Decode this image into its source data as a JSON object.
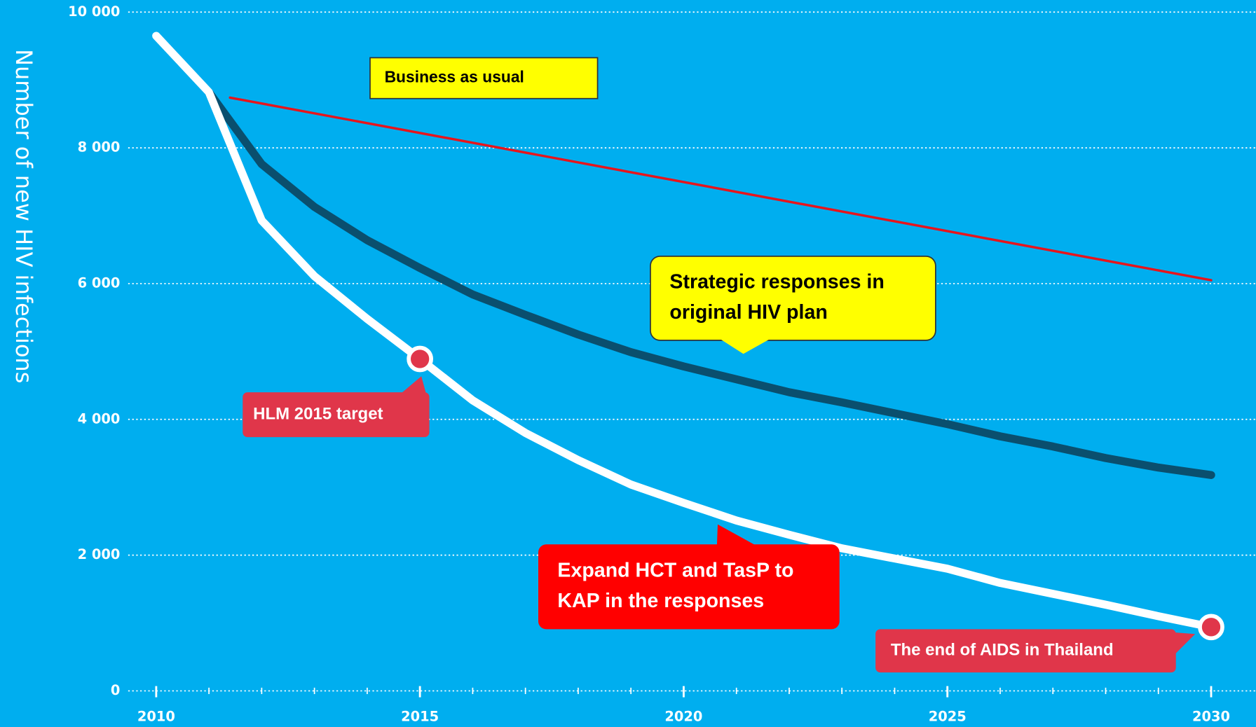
{
  "chart_data": {
    "type": "line",
    "ylabel": "Number of new HIV infections",
    "x": [
      2010,
      2011,
      2012,
      2013,
      2014,
      2015,
      2016,
      2017,
      2018,
      2019,
      2020,
      2021,
      2022,
      2023,
      2024,
      2025,
      2026,
      2027,
      2028,
      2029,
      2030
    ],
    "series": [
      {
        "name": "Expand HCT and TasP to KAP in the responses",
        "color": "#ffffff",
        "values": [
          9650,
          8820,
          6930,
          6110,
          5480,
          4890,
          4280,
          3800,
          3400,
          3040,
          2770,
          2510,
          2300,
          2100,
          1950,
          1800,
          1590,
          1430,
          1270,
          1100,
          940
        ]
      },
      {
        "name": "Strategic responses in original HIV plan",
        "color": "#0a4f6e",
        "values": [
          null,
          8820,
          7760,
          7130,
          6640,
          6230,
          5840,
          5540,
          5250,
          4990,
          4780,
          4590,
          4400,
          4250,
          4090,
          3930,
          3750,
          3600,
          3430,
          3290,
          3180
        ]
      },
      {
        "name": "Business as usual",
        "color": "#e8141b",
        "x": [
          2011.4,
          2030
        ],
        "values": [
          8740,
          6050
        ]
      }
    ],
    "xlim": [
      2010,
      2030
    ],
    "ylim": [
      0,
      10000
    ],
    "xticks": [
      2010,
      2015,
      2020,
      2025,
      2030
    ],
    "yticks": [
      0,
      {
        "value": 2000,
        "label": "2 000"
      },
      {
        "value": 4000,
        "label": "4 000"
      },
      {
        "value": 6000,
        "label": "6 000"
      },
      {
        "value": 8000,
        "label": "8 000"
      },
      {
        "value": 10000,
        "label": "10 000"
      }
    ],
    "grid": true,
    "annotations": [
      {
        "lines": [
          "Business as usual"
        ],
        "color": "#ffff00"
      },
      {
        "lines": [
          "Strategic responses in",
          "original HIV plan"
        ],
        "color": "#ffff00"
      },
      {
        "lines": [
          "Expand HCT and TasP to",
          "KAP in the responses"
        ],
        "color": "#ff0000"
      },
      {
        "lines": [
          "HLM 2015 target"
        ],
        "color": "#e0364a"
      },
      {
        "lines": [
          "The end of AIDS in Thailand"
        ],
        "color": "#e0364a"
      }
    ]
  }
}
